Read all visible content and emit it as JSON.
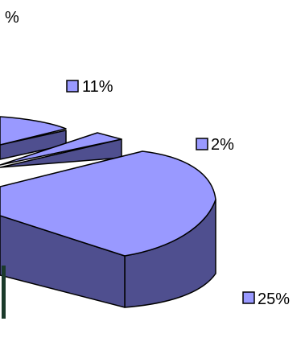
{
  "chart_data": {
    "type": "pie",
    "style": "3d-exploded",
    "title": "%",
    "slices": [
      {
        "label": "25%",
        "value": 25
      },
      {
        "label": "2%",
        "value": 2
      },
      {
        "label": "11%",
        "value": 11
      }
    ],
    "legend_marker": "square",
    "colors": {
      "top": "#9999ff",
      "side": "#4f4f8f",
      "outline": "#000000",
      "dark_mark": "#1a3a2a"
    }
  }
}
